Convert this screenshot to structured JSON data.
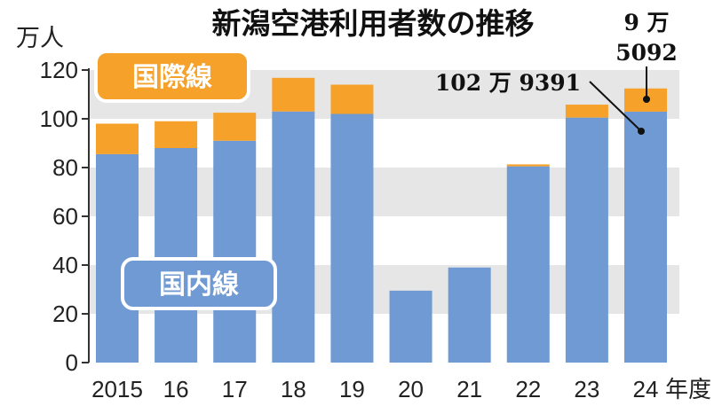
{
  "chart_data": {
    "type": "bar",
    "stacked": true,
    "title": "新潟空港利用者数の推移",
    "ylabel": "万人",
    "x_unit_suffix": "年度",
    "categories": [
      "2015",
      "16",
      "17",
      "18",
      "19",
      "20",
      "21",
      "22",
      "23",
      "24"
    ],
    "series": [
      {
        "name": "国内線",
        "color": "#6f9ad3",
        "values": [
          85.5,
          88,
          91,
          103,
          102,
          29.5,
          39,
          80.5,
          100.5,
          102.9391
        ]
      },
      {
        "name": "国際線",
        "color": "#f5a12a",
        "values": [
          12.5,
          11,
          11.5,
          13.8,
          12,
          0,
          0,
          0.8,
          5.3,
          9.5092
        ]
      }
    ],
    "ylim": [
      0,
      120
    ],
    "yticks": [
      0,
      20,
      40,
      60,
      80,
      100,
      120
    ],
    "grid": "alternating horizontal bands",
    "legend_placement": "inside chart (国際線 top-left, 国内線 lower-left)",
    "annotations": {
      "domestic_2024": "102 万 9391",
      "international_2024_line1": "9 万",
      "international_2024_line2": "5092"
    }
  }
}
